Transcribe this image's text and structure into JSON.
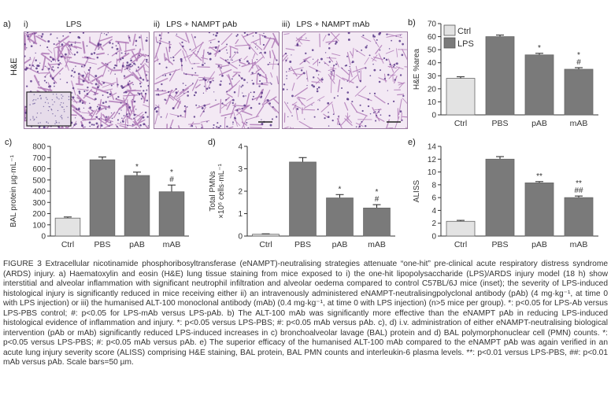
{
  "panel_a": {
    "label": "a)",
    "images": [
      {
        "roman": "i)",
        "title": "LPS",
        "seed": 11,
        "density": 1.0
      },
      {
        "roman": "ii)",
        "title": "LPS + NAMPT pAb",
        "seed": 29,
        "density": 0.55
      },
      {
        "roman": "iii)",
        "title": "LPS + NAMPT mAb",
        "seed": 47,
        "density": 0.35
      }
    ],
    "row_label": "H&E",
    "inset_label": "inset",
    "colors": {
      "tissue": "#b07ab8",
      "background": "#f3e9f4",
      "nuclei": "#5a3a8a"
    }
  },
  "chart_data": [
    {
      "panel": "b)",
      "type": "bar",
      "categories": [
        "Ctrl",
        "PBS",
        "pAB",
        "mAB"
      ],
      "values": [
        28,
        60,
        46,
        35
      ],
      "errors": [
        1.2,
        1.2,
        1.2,
        1.2
      ],
      "colors": [
        "#e3e3e3",
        "#7a7a7a",
        "#7a7a7a",
        "#7a7a7a"
      ],
      "annotations": [
        "",
        "",
        "*",
        "*\n#"
      ],
      "ylabel": "H&E %area",
      "ylim": [
        0,
        70
      ],
      "yticks": [
        0,
        10,
        20,
        30,
        40,
        50,
        60,
        70
      ],
      "legend": [
        {
          "name": "Ctrl",
          "color": "#e3e3e3"
        },
        {
          "name": "LPS",
          "color": "#7a7a7a"
        }
      ],
      "legend_position": "top-left"
    },
    {
      "panel": "c)",
      "type": "bar",
      "categories": [
        "Ctrl",
        "PBS",
        "pAB",
        "mAB"
      ],
      "values": [
        160,
        680,
        540,
        395
      ],
      "errors": [
        10,
        25,
        30,
        60
      ],
      "colors": [
        "#e3e3e3",
        "#7a7a7a",
        "#7a7a7a",
        "#7a7a7a"
      ],
      "annotations": [
        "",
        "",
        "*",
        "*\n#"
      ],
      "ylabel": "BAL protein µg·mL⁻¹",
      "ylim": [
        0,
        800
      ],
      "yticks": [
        0,
        100,
        200,
        300,
        400,
        500,
        600,
        700,
        800
      ]
    },
    {
      "panel": "d)",
      "type": "bar",
      "categories": [
        "Ctrl",
        "PBS",
        "pAB",
        "mAB"
      ],
      "values": [
        0.08,
        3.3,
        1.7,
        1.25
      ],
      "errors": [
        0.02,
        0.2,
        0.15,
        0.15
      ],
      "colors": [
        "#e3e3e3",
        "#7a7a7a",
        "#7a7a7a",
        "#7a7a7a"
      ],
      "annotations": [
        "",
        "",
        "*",
        "*\n#"
      ],
      "ylabel": "Total PMNs\n×10⁶ cells·mL⁻¹",
      "ylim": [
        0,
        4
      ],
      "yticks": [
        0,
        1,
        2,
        3,
        4
      ]
    },
    {
      "panel": "e)",
      "type": "bar",
      "categories": [
        "Ctrl",
        "PBS",
        "pAB",
        "mAB"
      ],
      "values": [
        2.3,
        12.0,
        8.3,
        6.0
      ],
      "errors": [
        0.15,
        0.4,
        0.2,
        0.25
      ],
      "colors": [
        "#e3e3e3",
        "#7a7a7a",
        "#7a7a7a",
        "#7a7a7a"
      ],
      "annotations": [
        "",
        "",
        "**",
        "**\n##"
      ],
      "ylabel": "ALISS",
      "ylim": [
        0,
        14
      ],
      "yticks": [
        0,
        2,
        4,
        6,
        8,
        10,
        12,
        14
      ]
    }
  ],
  "caption": {
    "head": "FIGURE 3",
    "text": "Extracellular nicotinamide phosphoribosyltransferase (eNAMPT)-neutralising strategies attenuate “one-hit” pre-clinical acute respiratory distress syndrome (ARDS) injury. a) Haematoxylin and eosin (H&E) lung tissue staining from mice exposed to i) the one-hit lipopolysaccharide (LPS)/ARDS injury model (18 h) show interstitial and alveolar inflammation with significant neutrophil infiltration and alveolar oedema compared to control C57BL/6J mice (inset); the severity of LPS-induced histological injury is significantly reduced in mice receiving either ii) an intravenously administered eNAMPT-neutralisingpolyclonal antibody (pAb) (4 mg·kg⁻¹, at time 0 with LPS injection) or iii) the humanised ALT-100 monoclonal antibody (mAb) (0.4 mg·kg⁻¹, at time 0 with LPS injection) (n>5 mice per group). *: p<0.05 for LPS-Ab versus LPS-PBS control; #: p<0.05 for LPS-mAb versus LPS-pAb. b) The ALT-100 mAb was significantly more effective than the eNAMPT pAb in reducing LPS-induced histological evidence of inflammation and injury. *: p<0.05 versus LPS-PBS; #: p<0.05 mAb versus pAb. c), d) i.v. administration of either eNAMPT-neutralising biological intervention (pAb or mAb) significantly reduced LPS-induced increases in c) bronchoalveolar lavage (BAL) protein and d) BAL polymorphonuclear cell (PMN) counts. *: p<0.05 versus LPS-PBS; #: p<0.05 mAb versus pAb. e) The superior efficacy of the humanised ALT-100 mAb compared to the eNAMPT pAb was again verified in an acute lung injury severity score (ALISS) comprising H&E staining, BAL protein, BAL PMN counts and interleukin-6 plasma levels. **: p<0.01 versus LPS-PBS, ##: p<0.01 mAb versus pAb. Scale bars=50 µm."
  }
}
